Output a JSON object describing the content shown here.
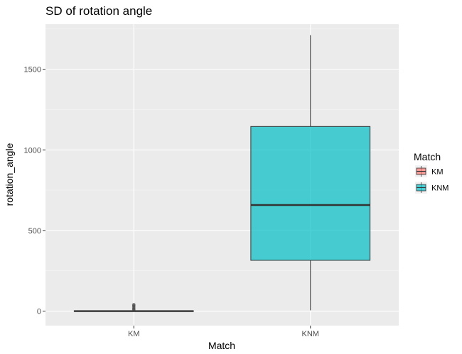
{
  "chart_data": {
    "type": "boxplot",
    "title": "SD of rotation angle",
    "xlabel": "Match",
    "ylabel": "rotation_angle",
    "categories": [
      "KM",
      "KNM"
    ],
    "ylim": [
      -90,
      1780
    ],
    "yticks": [
      0,
      500,
      1000,
      1500
    ],
    "ytick_labels": [
      "0",
      "500",
      "1000",
      "1500"
    ],
    "grid": true,
    "legend": {
      "title": "Match",
      "position": "right",
      "entries": [
        "KM",
        "KNM"
      ]
    },
    "boxes": [
      {
        "name": "KM",
        "color": "#F8766D",
        "min": 0,
        "q1": 0,
        "median": 0,
        "q3": 2,
        "max": 4,
        "outliers": [
          8,
          15,
          24,
          33,
          40
        ]
      },
      {
        "name": "KNM",
        "color": "#00BFC4",
        "min": 5,
        "q1": 315,
        "median": 658,
        "q3": 1145,
        "max": 1712,
        "outliers": []
      }
    ]
  }
}
